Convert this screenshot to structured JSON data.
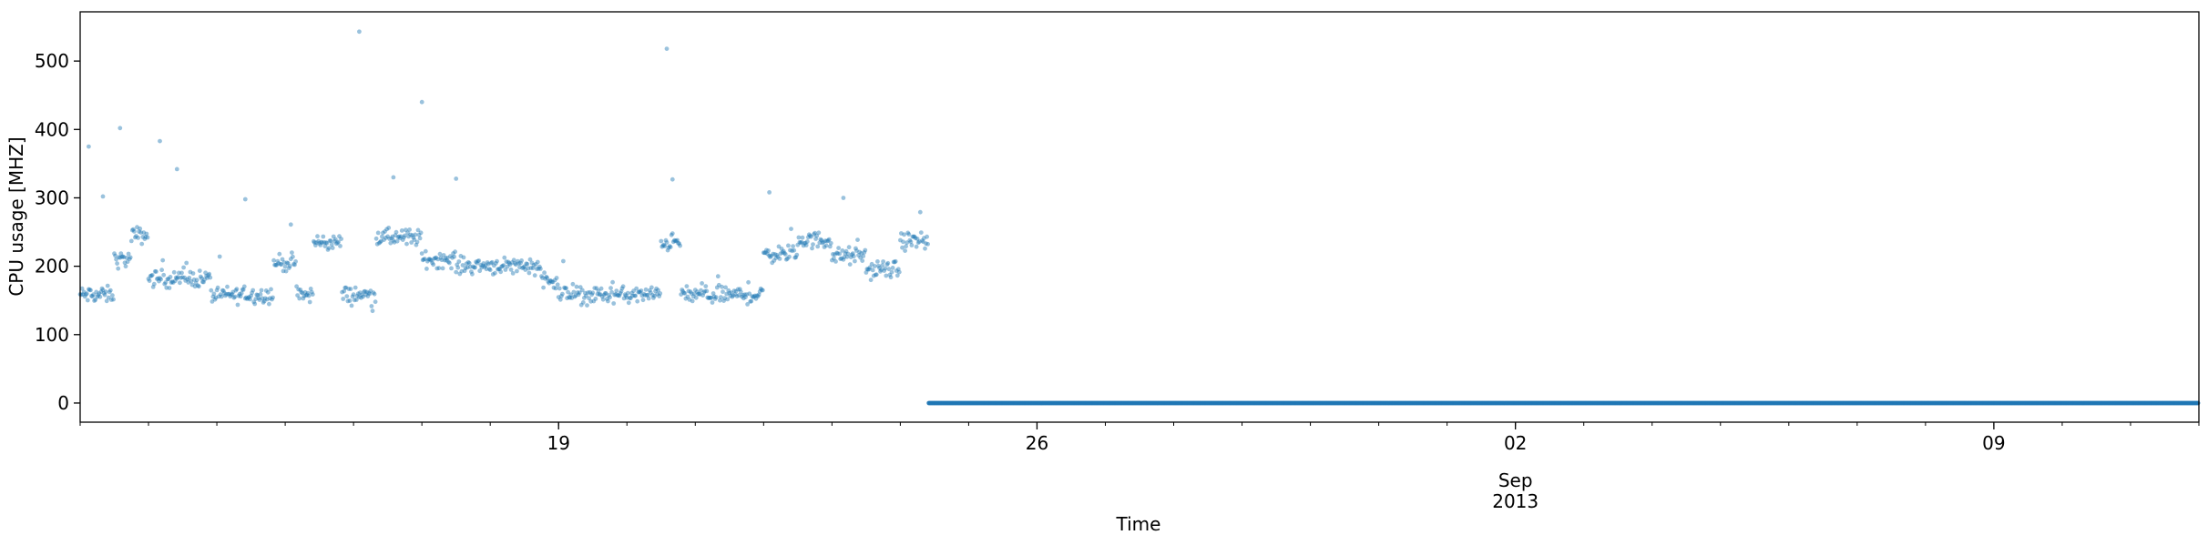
{
  "chart_data": {
    "type": "scatter",
    "title": "",
    "xlabel": "Time",
    "ylabel": "CPU usage [MHZ]",
    "x_type": "date",
    "xlim": [
      "2013-08-12T00:00",
      "2013-09-12T00:00"
    ],
    "ylim": [
      -28,
      572
    ],
    "yticks": [
      0,
      100,
      200,
      300,
      400,
      500
    ],
    "xticks": [
      {
        "date": "2013-08-19",
        "label": "19"
      },
      {
        "date": "2013-08-26",
        "label": "26"
      },
      {
        "date": "2013-09-02",
        "label": "02",
        "sublabel": "Sep",
        "sublabel2": "2013"
      },
      {
        "date": "2013-09-09",
        "label": "09"
      }
    ],
    "marker_color": "#1f77b4",
    "marker_alpha": 0.45,
    "series": [
      {
        "segments": [
          {
            "start": "2013-08-12T00:00",
            "end": "2013-08-12T12:00",
            "mean": 158
          },
          {
            "start": "2013-08-12T12:00",
            "end": "2013-08-12T18:00",
            "mean": 210
          },
          {
            "start": "2013-08-12T18:00",
            "end": "2013-08-13T00:00",
            "mean": 245
          },
          {
            "start": "2013-08-13T00:00",
            "end": "2013-08-13T22:00",
            "mean": 182
          },
          {
            "start": "2013-08-13T22:00",
            "end": "2013-08-14T20:00",
            "mean": 158
          },
          {
            "start": "2013-08-14T20:00",
            "end": "2013-08-15T04:00",
            "mean": 205
          },
          {
            "start": "2013-08-15T04:00",
            "end": "2013-08-15T10:00",
            "mean": 158
          },
          {
            "start": "2013-08-15T10:00",
            "end": "2013-08-15T20:00",
            "mean": 235
          },
          {
            "start": "2013-08-15T20:00",
            "end": "2013-08-16T08:00",
            "mean": 158
          },
          {
            "start": "2013-08-16T08:00",
            "end": "2013-08-17T00:00",
            "mean": 242
          },
          {
            "start": "2013-08-17T00:00",
            "end": "2013-08-17T12:00",
            "mean": 210
          },
          {
            "start": "2013-08-17T12:00",
            "end": "2013-08-18T18:00",
            "mean": 201
          },
          {
            "start": "2013-08-18T18:00",
            "end": "2013-08-19T00:00",
            "mean": 180
          },
          {
            "start": "2013-08-19T00:00",
            "end": "2013-08-20T12:00",
            "mean": 158
          },
          {
            "start": "2013-08-20T12:00",
            "end": "2013-08-20T19:00",
            "mean": 235
          },
          {
            "start": "2013-08-20T19:00",
            "end": "2013-08-22T00:00",
            "mean": 158
          },
          {
            "start": "2013-08-22T00:00",
            "end": "2013-08-22T12:00",
            "mean": 218
          },
          {
            "start": "2013-08-22T12:00",
            "end": "2013-08-23T00:00",
            "mean": 238
          },
          {
            "start": "2013-08-23T00:00",
            "end": "2013-08-23T12:00",
            "mean": 215
          },
          {
            "start": "2013-08-23T12:00",
            "end": "2013-08-24T00:00",
            "mean": 195
          },
          {
            "start": "2013-08-24T00:00",
            "end": "2013-08-24T10:00",
            "mean": 237
          },
          {
            "start": "2013-08-24T10:00",
            "end": "2013-09-12T00:00",
            "mean": 0
          }
        ],
        "outliers": [
          {
            "x": "2013-08-12T03:00",
            "y": 375
          },
          {
            "x": "2013-08-12T08:00",
            "y": 302
          },
          {
            "x": "2013-08-12T14:00",
            "y": 402
          },
          {
            "x": "2013-08-13T04:00",
            "y": 383
          },
          {
            "x": "2013-08-13T10:00",
            "y": 342
          },
          {
            "x": "2013-08-14T10:00",
            "y": 298
          },
          {
            "x": "2013-08-15T02:00",
            "y": 261
          },
          {
            "x": "2013-08-16T02:00",
            "y": 543
          },
          {
            "x": "2013-08-16T14:00",
            "y": 330
          },
          {
            "x": "2013-08-17T00:00",
            "y": 440
          },
          {
            "x": "2013-08-17T12:00",
            "y": 328
          },
          {
            "x": "2013-08-20T14:00",
            "y": 518
          },
          {
            "x": "2013-08-20T16:00",
            "y": 327
          },
          {
            "x": "2013-08-22T02:00",
            "y": 308
          },
          {
            "x": "2013-08-23T04:00",
            "y": 300
          }
        ]
      }
    ]
  }
}
